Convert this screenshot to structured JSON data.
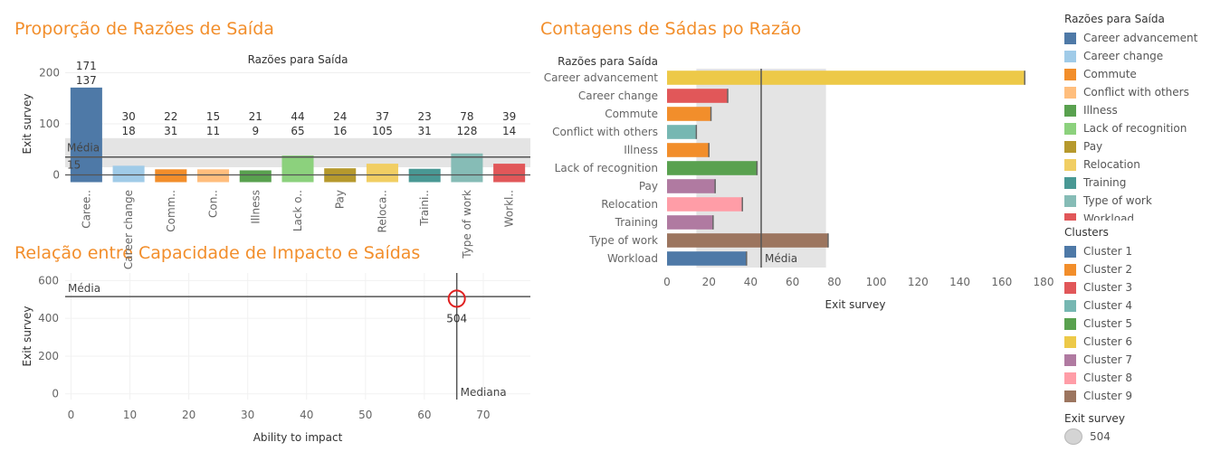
{
  "titles": {
    "proportion": "Proporção de Razões de Saída",
    "counts": "Contagens de Sádas po Razão",
    "relation": "Relação entre Capacidade de Impacto e Saídas"
  },
  "colors": {
    "title": "#f28e2b",
    "band": "#e4e4e4",
    "refline": "#555555",
    "highlight": "#e02020"
  },
  "legend": {
    "reasons_title": "Razões para Saída",
    "reasons": [
      {
        "label": "Career advancement",
        "color": "#4e79a7"
      },
      {
        "label": "Career change",
        "color": "#a0cbe8"
      },
      {
        "label": "Commute",
        "color": "#f28e2b"
      },
      {
        "label": "Conflict with others",
        "color": "#ffbe7d"
      },
      {
        "label": "Illness",
        "color": "#59a14f"
      },
      {
        "label": "Lack of recognition",
        "color": "#8cd17d"
      },
      {
        "label": "Pay",
        "color": "#b6992d"
      },
      {
        "label": "Relocation",
        "color": "#f1ce63"
      },
      {
        "label": "Training",
        "color": "#499894"
      },
      {
        "label": "Type of work",
        "color": "#86bcb6"
      },
      {
        "label": "Workload",
        "color": "#e15759"
      }
    ],
    "clusters_title": "Clusters",
    "clusters": [
      {
        "label": "Cluster 1",
        "color": "#4e79a7"
      },
      {
        "label": "Cluster 2",
        "color": "#f28e2b"
      },
      {
        "label": "Cluster 3",
        "color": "#e15759"
      },
      {
        "label": "Cluster 4",
        "color": "#76b7b2"
      },
      {
        "label": "Cluster 5",
        "color": "#59a14f"
      },
      {
        "label": "Cluster 6",
        "color": "#edc948"
      },
      {
        "label": "Cluster 7",
        "color": "#b07aa1"
      },
      {
        "label": "Cluster 8",
        "color": "#ff9da7"
      },
      {
        "label": "Cluster 9",
        "color": "#9c755f"
      }
    ],
    "size_title": "Exit survey",
    "size_value": "504"
  },
  "chart_data": [
    {
      "id": "proportion",
      "type": "bar",
      "header": "Razões para Saída",
      "ylabel": "Exit survey",
      "ylim": [
        -15,
        215
      ],
      "yticks": [
        0,
        100,
        200
      ],
      "categories": [
        "Caree..",
        "Career change",
        "Comm..",
        "Con..",
        "Illness",
        "Lack o..",
        "Pay",
        "Reloca..",
        "Traini..",
        "Type of work",
        "Workl.."
      ],
      "values": [
        171,
        18,
        11,
        11,
        9,
        38,
        13,
        22,
        12,
        42,
        22
      ],
      "colors": [
        "#4e79a7",
        "#a0cbe8",
        "#f28e2b",
        "#ffbe7d",
        "#59a14f",
        "#8cd17d",
        "#b6992d",
        "#f1ce63",
        "#499894",
        "#86bcb6",
        "#e15759"
      ],
      "labels_top": [
        "171",
        "30",
        "22",
        "15",
        "21",
        "44",
        "24",
        "37",
        "23",
        "78",
        "39"
      ],
      "labels_bottom": [
        "137",
        "18",
        "31",
        "11",
        "9",
        "65",
        "16",
        "105",
        "31",
        "128",
        "14"
      ],
      "band": [
        15,
        72
      ],
      "reference_line": {
        "value": 35,
        "label": "Média"
      },
      "band_low_label": "15"
    },
    {
      "id": "counts",
      "type": "bar",
      "header": "Razões para Saída",
      "xlabel": "Exit survey",
      "xlim": [
        0,
        180
      ],
      "xticks": [
        0,
        20,
        40,
        60,
        80,
        100,
        120,
        140,
        160,
        180
      ],
      "categories": [
        "Career advancement",
        "Career change",
        "Commute",
        "Conflict with others",
        "Illness",
        "Lack of recognition",
        "Pay",
        "Relocation",
        "Training",
        "Type of work",
        "Workload"
      ],
      "values": [
        171,
        29,
        21,
        14,
        20,
        43,
        23,
        36,
        22,
        77,
        38
      ],
      "colors": [
        "#edc948",
        "#e15759",
        "#f28e2b",
        "#76b7b2",
        "#f28e2b",
        "#59a14f",
        "#b07aa1",
        "#ff9da7",
        "#b07aa1",
        "#9c755f",
        "#4e79a7"
      ],
      "band": [
        14,
        76
      ],
      "reference_line": {
        "value": 45,
        "label": "Média"
      }
    },
    {
      "id": "relation",
      "type": "scatter",
      "xlabel": "Ability to impact",
      "ylabel": "Exit survey",
      "xlim": [
        -1,
        78
      ],
      "ylim": [
        -30,
        640
      ],
      "xticks": [
        0,
        10,
        20,
        30,
        40,
        50,
        60,
        70
      ],
      "yticks": [
        0,
        200,
        400,
        600
      ],
      "points": [
        {
          "x": 65.5,
          "y": 504,
          "label": "504"
        }
      ],
      "reference_lines": [
        {
          "axis": "y",
          "value": 515,
          "label": "Média"
        },
        {
          "axis": "x",
          "value": 65.5,
          "label": "Mediana"
        }
      ]
    }
  ]
}
